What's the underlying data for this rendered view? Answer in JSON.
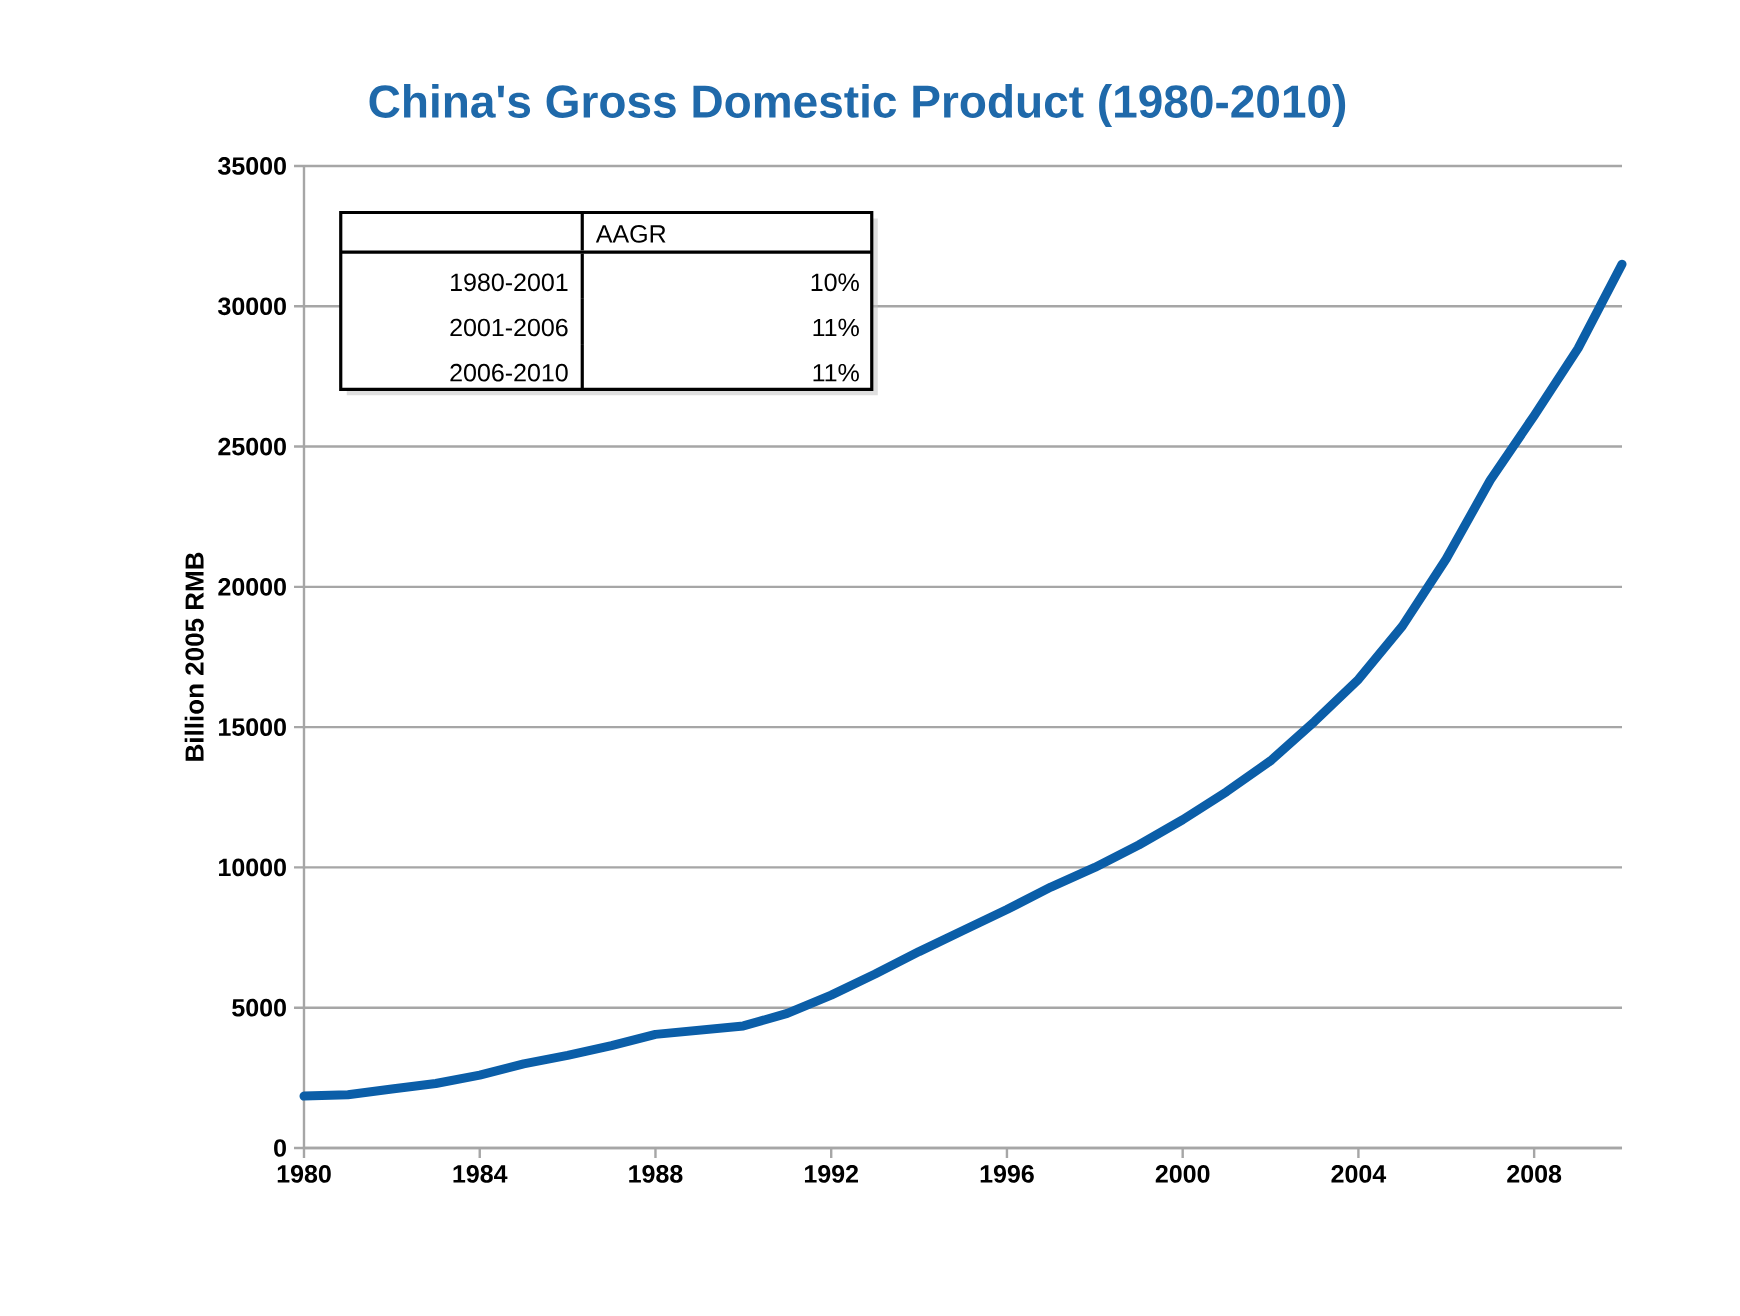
{
  "chart_data": {
    "type": "line",
    "title": "China's Gross Domestic Product (1980-2010)",
    "ylabel": "Billion 2005 RMB",
    "x": [
      1980,
      1981,
      1982,
      1983,
      1984,
      1985,
      1986,
      1987,
      1988,
      1989,
      1990,
      1991,
      1992,
      1993,
      1994,
      1995,
      1996,
      1997,
      1998,
      1999,
      2000,
      2001,
      2002,
      2003,
      2004,
      2005,
      2006,
      2007,
      2008,
      2009,
      2010
    ],
    "series": [
      {
        "color": "#0b5ea8",
        "values": [
          1850,
          1900,
          2100,
          2300,
          2600,
          3000,
          3300,
          3650,
          4050,
          4200,
          4350,
          4800,
          5450,
          6200,
          7000,
          7750,
          8500,
          9300,
          10000,
          10800,
          11700,
          12700,
          13800,
          15200,
          16700,
          18600,
          21000,
          23800,
          26100,
          28500,
          31500
        ]
      }
    ],
    "xlim": [
      1980,
      2010
    ],
    "xticks": [
      1980,
      1984,
      1988,
      1992,
      1996,
      2000,
      2004,
      2008
    ],
    "ylim": [
      0,
      35000
    ],
    "yticks": [
      0,
      5000,
      10000,
      15000,
      20000,
      25000,
      30000,
      35000
    ],
    "grid": "y",
    "marker": "none",
    "line_style": "solid",
    "annotations": [
      "AAGR",
      "1980-2001",
      "10%",
      "2001-2006",
      "11%",
      "2006-2010",
      "11%"
    ]
  }
}
